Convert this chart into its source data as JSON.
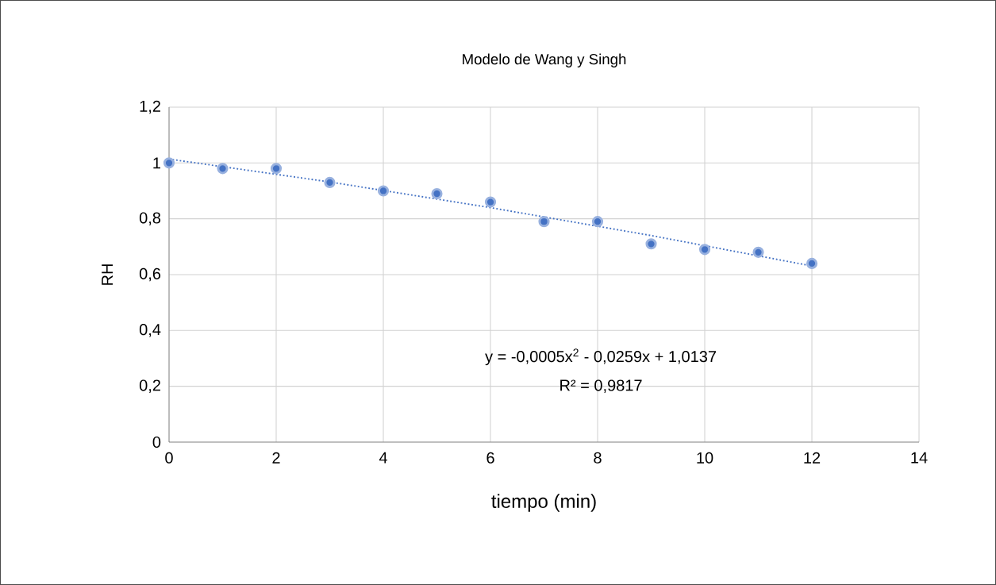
{
  "chart_data": {
    "type": "scatter",
    "title": "Modelo de Wang y Singh",
    "xlabel": "tiempo (min)",
    "ylabel": "RH",
    "x": [
      0,
      1,
      2,
      3,
      4,
      5,
      6,
      7,
      8,
      9,
      10,
      11,
      12
    ],
    "series": [
      {
        "color": "#4472c4",
        "marker": "circle",
        "values": [
          1.0,
          0.98,
          0.98,
          0.93,
          0.9,
          0.89,
          0.86,
          0.79,
          0.79,
          0.71,
          0.69,
          0.68,
          0.64
        ]
      },
      {
        "type": "line",
        "color": "#4472c4",
        "line_style": "dotted",
        "marker": "none",
        "x": [
          0,
          3,
          6,
          9,
          12
        ],
        "values": [
          1.014,
          0.932,
          0.84,
          0.74,
          0.631
        ]
      }
    ],
    "xlim": [
      0,
      14
    ],
    "xticks": [
      0,
      2,
      4,
      6,
      8,
      10,
      12,
      14
    ],
    "ylim": [
      0,
      1.2
    ],
    "yticks": [
      0,
      {
        "value": 0.2,
        "label": "0,2"
      },
      {
        "value": 0.4,
        "label": "0,4"
      },
      {
        "value": 0.6,
        "label": "0,6"
      },
      {
        "value": 0.8,
        "label": "0,8"
      },
      1,
      {
        "value": 1.2,
        "label": "1,2"
      }
    ],
    "grid": true,
    "annotations": [
      "y = -0,0005x$^{2}$ - 0,0259x + 1,0137",
      "R² = 0,9817"
    ]
  }
}
